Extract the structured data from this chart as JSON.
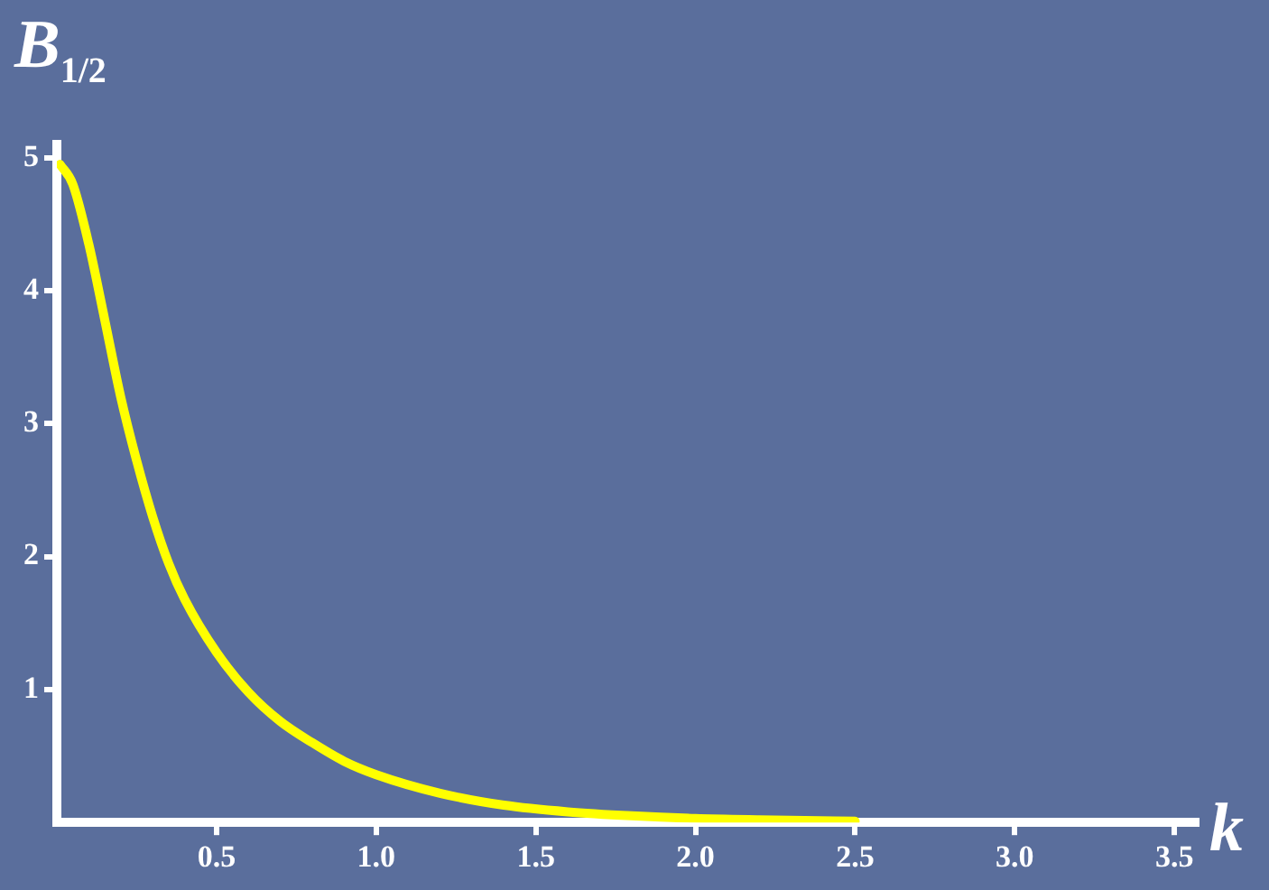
{
  "chart_data": {
    "type": "line",
    "xlabel": "k",
    "ylabel": "B$_{1/2}$",
    "series": [
      {
        "color": "#ffff00",
        "x": [
          0.01,
          0.05,
          0.1,
          0.15,
          0.2,
          0.25,
          0.3,
          0.35,
          0.4,
          0.5,
          0.6,
          0.7,
          0.8,
          0.9,
          1.0,
          1.2,
          1.4,
          1.6,
          1.8,
          2.0,
          2.2,
          2.5
        ],
        "values": [
          4.95,
          4.8,
          4.35,
          3.78,
          3.2,
          2.72,
          2.3,
          1.95,
          1.68,
          1.28,
          0.98,
          0.76,
          0.6,
          0.46,
          0.36,
          0.22,
          0.13,
          0.08,
          0.05,
          0.03,
          0.02,
          0.01
        ]
      }
    ],
    "xlim": [
      0,
      3.57
    ],
    "ylim": [
      0,
      5.1
    ],
    "xticks": [
      0.5,
      {
        "value": 1,
        "label": "1.0"
      },
      1.5,
      {
        "value": 2,
        "label": "2.0"
      },
      2.5,
      {
        "value": 3,
        "label": "3.0"
      },
      3.5
    ],
    "yticks": [
      1,
      2,
      3,
      4,
      5
    ],
    "grid": false,
    "legend": false,
    "marker": "none",
    "line_style": "solid"
  }
}
